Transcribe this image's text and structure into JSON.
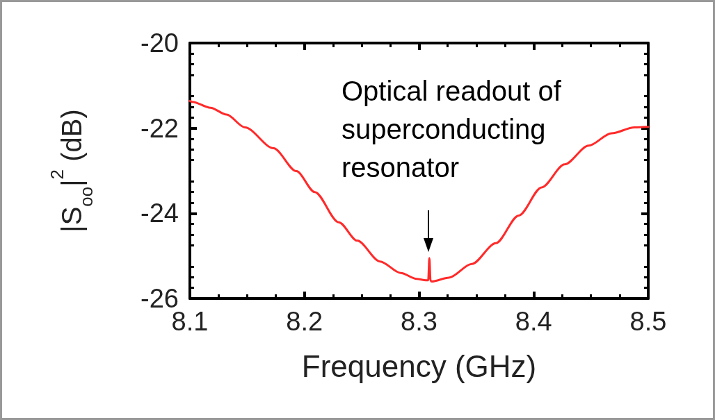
{
  "chart_data": {
    "type": "line",
    "xlabel": "Frequency (GHz)",
    "ylabel": "|S$_{oo}$|$^{2}$ (dB)",
    "xlim": [
      8.1,
      8.5
    ],
    "xticks": [
      8.1,
      8.2,
      8.3,
      8.4,
      8.5
    ],
    "ylim": [
      -26,
      -20
    ],
    "yticks": [
      -26,
      -24,
      -22,
      -20
    ],
    "grid": false,
    "marker": "none",
    "line_style": "solid",
    "annotations": [
      "Optical readout of superconducting resonator"
    ],
    "series": [
      {
        "color": "#ff2a2a",
        "x": [
          8.1,
          8.102,
          8.118,
          8.132,
          8.148,
          8.173,
          8.193,
          8.209,
          8.23,
          8.246,
          8.266,
          8.284,
          8.298,
          8.306,
          8.308,
          8.309,
          8.31,
          8.311,
          8.326,
          8.346,
          8.367,
          8.387,
          8.407,
          8.427,
          8.448,
          8.468,
          8.488,
          8.498,
          8.5
        ],
        "values": [
          -21.36,
          -21.38,
          -21.52,
          -21.68,
          -21.98,
          -22.47,
          -23.01,
          -23.5,
          -24.21,
          -24.64,
          -25.13,
          -25.4,
          -25.54,
          -25.57,
          -25.57,
          -25.05,
          -25.58,
          -25.6,
          -25.51,
          -25.19,
          -24.7,
          -24.05,
          -23.39,
          -22.85,
          -22.41,
          -22.12,
          -21.98,
          -21.97,
          -21.97
        ]
      }
    ]
  }
}
